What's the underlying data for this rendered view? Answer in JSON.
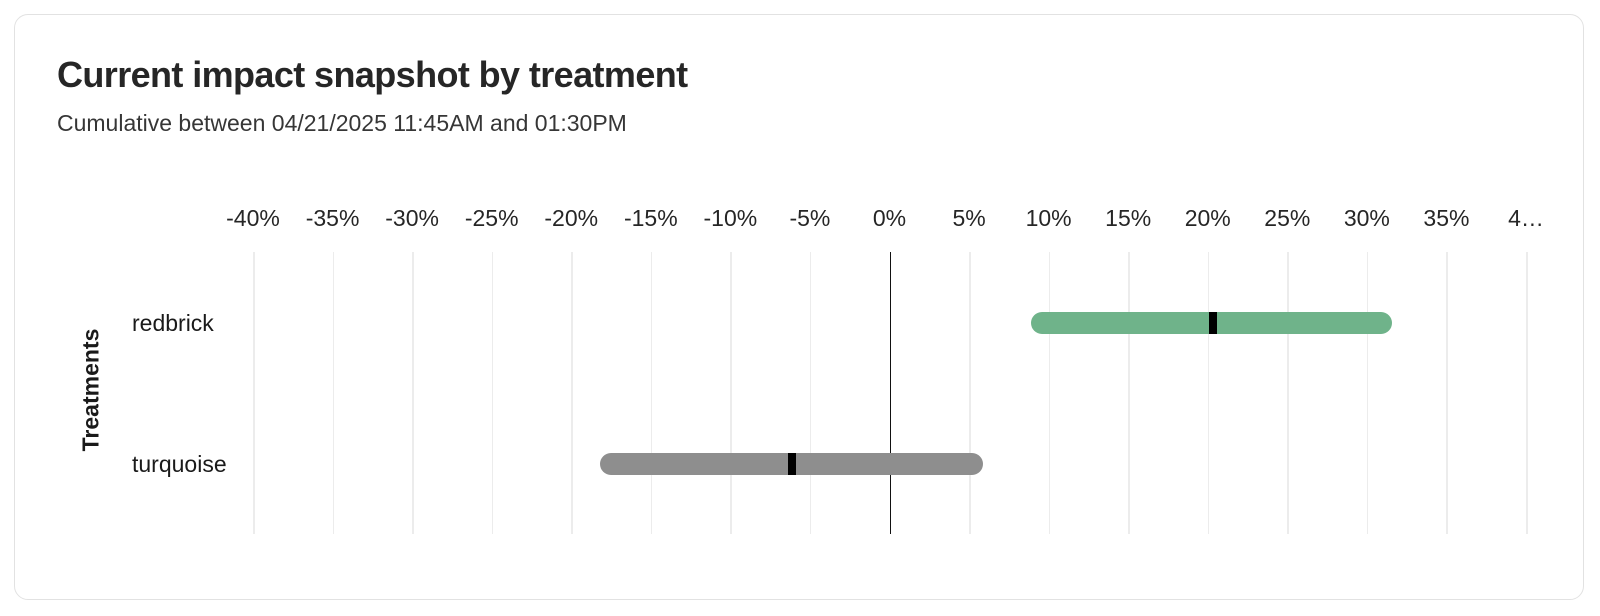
{
  "card": {
    "title": "Current impact snapshot by treatment",
    "subtitle": "Cumulative between 04/21/2025 11:45AM and 01:30PM"
  },
  "colors": {
    "card_background": "#ffffff",
    "card_border": "#e2e2e2",
    "gridline": "#ececec",
    "zero_line": "#111111",
    "midpoint_tick": "#000000",
    "redbrick_bar": "#6fb38a",
    "turquoise_bar": "#8e8e8e"
  },
  "chart_data": {
    "type": "bar",
    "subtype": "horizontal-interval",
    "title": "Current impact snapshot by treatment",
    "subtitle": "Cumulative between 04/21/2025 11:45AM and 01:30PM",
    "xlabel": "",
    "ylabel": "Treatments",
    "units": "%",
    "xlim": [
      -40,
      40
    ],
    "x_tick_step": 5,
    "grid": "vertical",
    "zero_line": true,
    "legend": "none",
    "x_ticks": [
      {
        "value": -40,
        "label": "-40%"
      },
      {
        "value": -35,
        "label": "-35%"
      },
      {
        "value": -30,
        "label": "-30%"
      },
      {
        "value": -25,
        "label": "-25%"
      },
      {
        "value": -20,
        "label": "-20%"
      },
      {
        "value": -15,
        "label": "-15%"
      },
      {
        "value": -10,
        "label": "-10%"
      },
      {
        "value": -5,
        "label": "-5%"
      },
      {
        "value": 0,
        "label": "0%"
      },
      {
        "value": 5,
        "label": "5%"
      },
      {
        "value": 10,
        "label": "10%"
      },
      {
        "value": 15,
        "label": "15%"
      },
      {
        "value": 20,
        "label": "20%"
      },
      {
        "value": 25,
        "label": "25%"
      },
      {
        "value": 30,
        "label": "30%"
      },
      {
        "value": 35,
        "label": "35%"
      },
      {
        "value": 40,
        "label": "4…"
      }
    ],
    "categories": [
      "redbrick",
      "turquoise"
    ],
    "series": [
      {
        "name": "redbrick",
        "low": 8.9,
        "high": 31.6,
        "mid": 20.3,
        "color": "#6fb38a"
      },
      {
        "name": "turquoise",
        "low": -18.2,
        "high": 5.9,
        "mid": -6.1,
        "color": "#8e8e8e"
      }
    ]
  }
}
